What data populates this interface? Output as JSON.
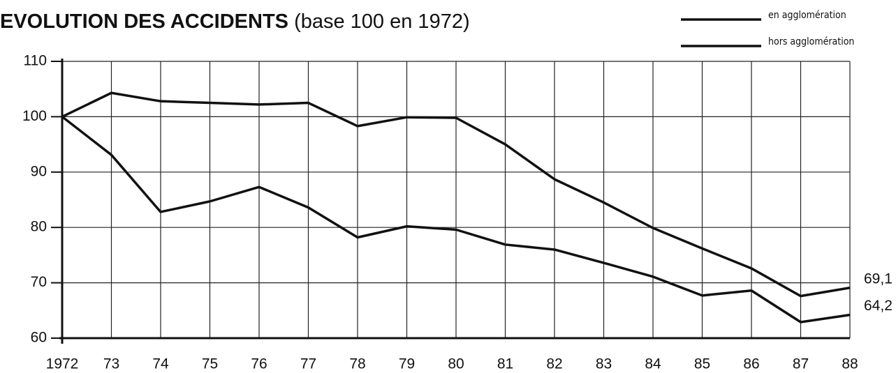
{
  "chart_data": {
    "type": "line",
    "title": "EVOLUTION DES ACCIDENTS",
    "subtitle": "(base 100 en 1972)",
    "categories": [
      "1972",
      "73",
      "74",
      "75",
      "76",
      "77",
      "78",
      "79",
      "80",
      "81",
      "82",
      "83",
      "84",
      "85",
      "86",
      "87",
      "88"
    ],
    "series": [
      {
        "name": "en agglomération",
        "color": "#111111",
        "values": [
          100,
          104.3,
          102.8,
          102.5,
          102.2,
          102.5,
          98.3,
          99.9,
          99.8,
          95.0,
          88.7,
          84.5,
          79.9,
          76.2,
          72.6,
          67.6,
          69.1
        ],
        "value_labels": [
          null,
          null,
          null,
          null,
          null,
          null,
          null,
          null,
          null,
          null,
          null,
          null,
          null,
          null,
          null,
          null,
          "69,1"
        ]
      },
      {
        "name": "hors agglomération",
        "color": "#111111",
        "values": [
          100,
          93.1,
          82.8,
          84.7,
          87.3,
          83.6,
          78.2,
          80.2,
          79.6,
          76.9,
          76.0,
          73.6,
          71.1,
          67.7,
          68.6,
          62.9,
          64.2
        ],
        "value_labels": [
          null,
          null,
          null,
          null,
          null,
          null,
          null,
          null,
          null,
          null,
          null,
          null,
          null,
          null,
          null,
          null,
          "64,2"
        ]
      }
    ],
    "ylim": [
      60,
      110
    ],
    "yticks": [
      60,
      70,
      80,
      90,
      100,
      110
    ],
    "grid": true,
    "legend": "top-right"
  }
}
